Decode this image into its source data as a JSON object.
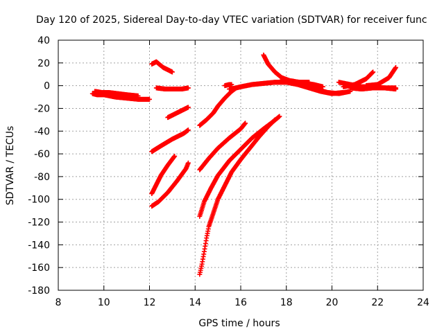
{
  "chart_data": {
    "type": "scatter",
    "title": "Day 120 of 2025, Sidereal Day-to-day VTEC variation (SDTVAR) for receiver func",
    "xlabel": "GPS time / hours",
    "ylabel": "SDTVAR / TECUs",
    "xlim": [
      8,
      24
    ],
    "ylim": [
      -180,
      40
    ],
    "xticks": [
      8,
      10,
      12,
      14,
      16,
      18,
      20,
      22,
      24
    ],
    "yticks": [
      40,
      20,
      0,
      -20,
      -40,
      -60,
      -80,
      -100,
      -120,
      -140,
      -160,
      -180
    ],
    "grid": true,
    "marker": "+",
    "color": "#ff0000",
    "series": [
      {
        "name": "s1",
        "x": [
          9.5,
          9.7,
          10.0,
          10.5,
          11.0,
          11.5,
          12.0
        ],
        "y": [
          -7,
          -8,
          -8,
          -10,
          -11,
          -12,
          -12
        ]
      },
      {
        "name": "s2",
        "x": [
          9.6,
          9.9,
          10.2,
          10.6,
          11.0,
          11.5
        ],
        "y": [
          -5,
          -6,
          -6,
          -7,
          -8,
          -9
        ]
      },
      {
        "name": "s3",
        "x": [
          12.1,
          12.3,
          12.6,
          13.0
        ],
        "y": [
          19,
          21,
          16,
          12
        ]
      },
      {
        "name": "s4",
        "x": [
          12.3,
          12.7,
          13.0,
          13.4,
          13.7
        ],
        "y": [
          -2,
          -3,
          -3,
          -3,
          -2
        ]
      },
      {
        "name": "s5",
        "x": [
          12.8,
          13.1,
          13.4,
          13.7
        ],
        "y": [
          -28,
          -25,
          -22,
          -19
        ]
      },
      {
        "name": "s6",
        "x": [
          12.1,
          12.5,
          13.0,
          13.5,
          13.7
        ],
        "y": [
          -58,
          -53,
          -47,
          -42,
          -39
        ]
      },
      {
        "name": "s7",
        "x": [
          12.1,
          12.3,
          12.5,
          12.8,
          13.1
        ],
        "y": [
          -95,
          -87,
          -79,
          -70,
          -62
        ]
      },
      {
        "name": "s8",
        "x": [
          12.1,
          12.4,
          12.8,
          13.2,
          13.6,
          13.7
        ],
        "y": [
          -106,
          -102,
          -94,
          -84,
          -73,
          -68
        ]
      },
      {
        "name": "s9",
        "x": [
          14.2,
          14.5,
          14.8,
          15.0,
          15.3,
          15.6,
          15.8
        ],
        "y": [
          -35,
          -30,
          -24,
          -18,
          -11,
          -5,
          -2
        ]
      },
      {
        "name": "s10",
        "x": [
          14.2,
          14.6,
          15.0,
          15.5,
          16.0,
          16.2
        ],
        "y": [
          -74,
          -64,
          -55,
          -46,
          -38,
          -33
        ]
      },
      {
        "name": "s11",
        "x": [
          14.2,
          14.4,
          14.7,
          15.0,
          15.5,
          16.0,
          16.5,
          17.0,
          17.4,
          17.7
        ],
        "y": [
          -115,
          -102,
          -90,
          -79,
          -66,
          -56,
          -46,
          -38,
          -32,
          -27
        ]
      },
      {
        "name": "s12",
        "x": [
          14.2,
          14.3,
          14.4,
          14.5,
          14.6,
          14.8,
          15.0,
          15.3,
          15.6,
          16.0,
          16.4,
          16.8,
          17.2,
          17.5
        ],
        "y": [
          -166,
          -157,
          -146,
          -134,
          -124,
          -112,
          -100,
          -88,
          -76,
          -65,
          -55,
          -45,
          -36,
          -30
        ]
      },
      {
        "name": "s13",
        "x": [
          15.5,
          15.8,
          16.0,
          16.5,
          17.0,
          17.5,
          18.0,
          18.5,
          19.0,
          19.5,
          20.0,
          20.5
        ],
        "y": [
          -3,
          -2,
          -1,
          1,
          2,
          3,
          3,
          1,
          -2,
          -5,
          -7,
          -6
        ]
      },
      {
        "name": "s14",
        "x": [
          15.3,
          15.5,
          15.6
        ],
        "y": [
          0,
          1,
          1
        ]
      },
      {
        "name": "s15",
        "x": [
          17.0,
          17.2,
          17.5,
          17.8,
          18.2,
          18.6,
          19.0
        ],
        "y": [
          27,
          19,
          12,
          7,
          4,
          3,
          3
        ]
      },
      {
        "name": "s16",
        "x": [
          17.8,
          18.3,
          18.8,
          19.3,
          19.8,
          20.3,
          20.8
        ],
        "y": [
          5,
          4,
          1,
          -3,
          -6,
          -7,
          -5
        ]
      },
      {
        "name": "s17",
        "x": [
          18.8,
          19.2,
          19.6
        ],
        "y": [
          2,
          1,
          -1
        ]
      },
      {
        "name": "s18",
        "x": [
          20.3,
          20.8,
          21.3,
          21.8,
          22.3,
          22.8
        ],
        "y": [
          3,
          1,
          -1,
          -1,
          -2,
          -3
        ]
      },
      {
        "name": "s19",
        "x": [
          20.5,
          21.0,
          21.5,
          21.8
        ],
        "y": [
          -1,
          1,
          6,
          12
        ]
      },
      {
        "name": "s20",
        "x": [
          21.5,
          22.0,
          22.5,
          22.8
        ],
        "y": [
          0,
          1,
          7,
          16
        ]
      },
      {
        "name": "s21",
        "x": [
          20.8,
          21.3,
          21.8,
          22.3,
          22.8
        ],
        "y": [
          -2,
          -3,
          -2,
          -2,
          -2
        ]
      }
    ]
  }
}
